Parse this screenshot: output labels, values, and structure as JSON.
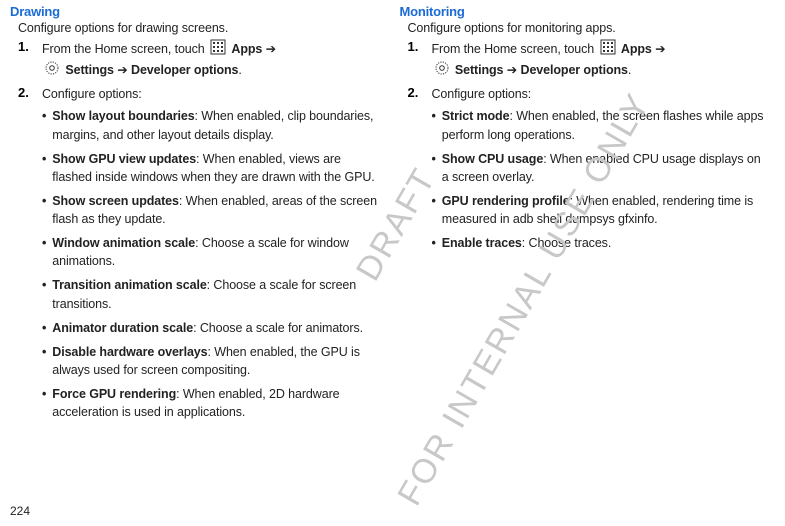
{
  "page_number": "224",
  "watermark_small": "DRAFT",
  "watermark_large": "FOR INTERNAL USE ONLY",
  "icons": {
    "apps_label": "Apps",
    "settings_label": "Settings",
    "dev_options": "Developer options"
  },
  "left": {
    "title": "Drawing",
    "intro": "Configure options for drawing screens.",
    "step1_pre": "From the Home screen, touch ",
    "arrow": " ➔ ",
    "step2": "Configure options:",
    "bullets": [
      {
        "b": "Show layout boundaries",
        "t": ": When enabled, clip boundaries, margins, and other layout details display."
      },
      {
        "b": "Show GPU view updates",
        "t": ": When enabled, views are flashed inside windows when they are drawn with the GPU."
      },
      {
        "b": "Show screen updates",
        "t": ": When enabled, areas of the screen flash as they update."
      },
      {
        "b": "Window animation scale",
        "t": ": Choose a scale for window animations."
      },
      {
        "b": "Transition animation scale",
        "t": ": Choose a scale for screen transitions."
      },
      {
        "b": "Animator duration scale",
        "t": ": Choose a scale for animators."
      },
      {
        "b": "Disable hardware overlays",
        "t": ": When enabled, the GPU is always used for screen compositing."
      },
      {
        "b": "Force GPU rendering",
        "t": ": When enabled, 2D hardware acceleration is used in applications."
      }
    ]
  },
  "right": {
    "title": "Monitoring",
    "intro": "Configure options for monitoring apps.",
    "step1_pre": "From the Home screen, touch ",
    "arrow": " ➔ ",
    "step2": "Configure options:",
    "bullets": [
      {
        "b": "Strict mode",
        "t": ": When enabled, the screen flashes while apps perform long operations."
      },
      {
        "b": "Show CPU usage",
        "t": ": When enabled CPU usage displays on a screen overlay."
      },
      {
        "b": "GPU rendering profile",
        "t": ": When enabled, rendering time is measured in adb shell dumpsys gfxinfo."
      },
      {
        "b": "Enable traces",
        "t": ": Choose traces."
      }
    ]
  }
}
